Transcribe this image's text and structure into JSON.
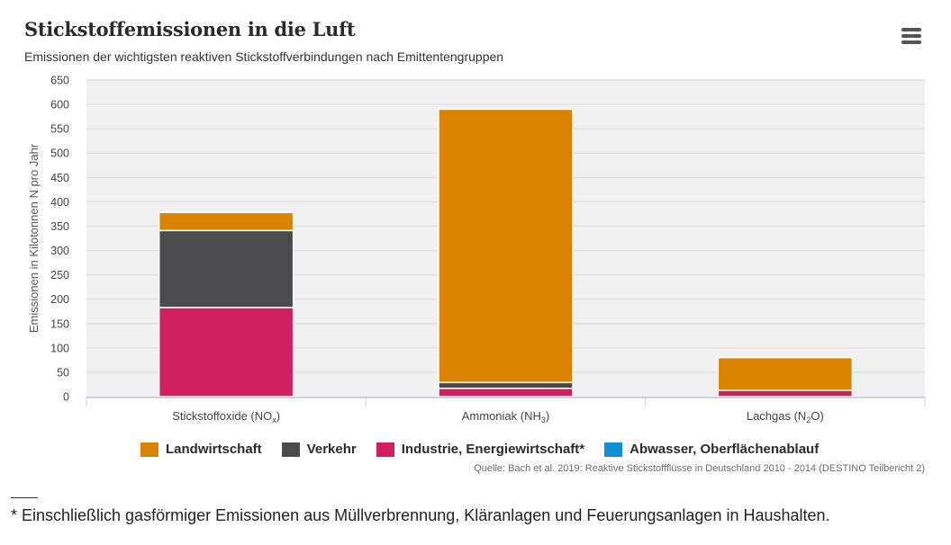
{
  "header": {
    "title": "Stickstoffemissionen in die Luft",
    "subtitle": "Emissionen der wichtigsten reaktiven Stickstoffverbindungen nach Emittentengruppen",
    "menu_icon": "hamburger-menu-icon"
  },
  "chart_data": {
    "type": "bar",
    "stacked": true,
    "title": "Stickstoffemissionen in die Luft",
    "subtitle": "Emissionen der wichtigsten reaktiven Stickstoffverbindungen nach Emittentengruppen",
    "xlabel": "",
    "ylabel": "Emissionen in Kilotonnen N pro Jahr",
    "ylim": [
      0,
      650
    ],
    "yticks": [
      0,
      50,
      100,
      150,
      200,
      250,
      300,
      350,
      400,
      450,
      500,
      550,
      600,
      650
    ],
    "grid": true,
    "legend_position": "bottom",
    "categories": [
      {
        "name": "Stickstoffoxide (NO",
        "sub": "x",
        "after": ")"
      },
      {
        "name": "Ammoniak (NH",
        "sub": "3",
        "after": ")"
      },
      {
        "name": "Lachgas (N",
        "sub": "2",
        "after": "O)"
      }
    ],
    "series": [
      {
        "name": "Industrie, Energiewirtschaft*",
        "color": "#d01f5f",
        "values": [
          183,
          17,
          13
        ]
      },
      {
        "name": "Verkehr",
        "color": "#4b4b4d",
        "values": [
          158,
          12,
          0
        ]
      },
      {
        "name": "Landwirtschaft",
        "color": "#d98300",
        "values": [
          37,
          561,
          67
        ]
      },
      {
        "name": "Abwasser, Oberflächenablauf",
        "color": "#0f8fd6",
        "values": [
          0,
          0,
          0
        ]
      }
    ]
  },
  "legend": [
    {
      "label": "Landwirtschaft",
      "color": "#d98300"
    },
    {
      "label": "Verkehr",
      "color": "#4b4b4d"
    },
    {
      "label": "Industrie, Energiewirtschaft*",
      "color": "#d01f5f"
    },
    {
      "label": "Abwasser, Oberflächenablauf",
      "color": "#0f8fd6"
    }
  ],
  "source": "Quelle: Bach et al. 2019: Reaktive Stickstoffflüsse in Deutschland 2010 - 2014 (DESTINO Teilbericht 2)",
  "footnote": "* Einschließlich gasförmiger Emissionen aus Müllverbrennung, Kläranlagen und Feuerungsanlagen in Haushalten."
}
